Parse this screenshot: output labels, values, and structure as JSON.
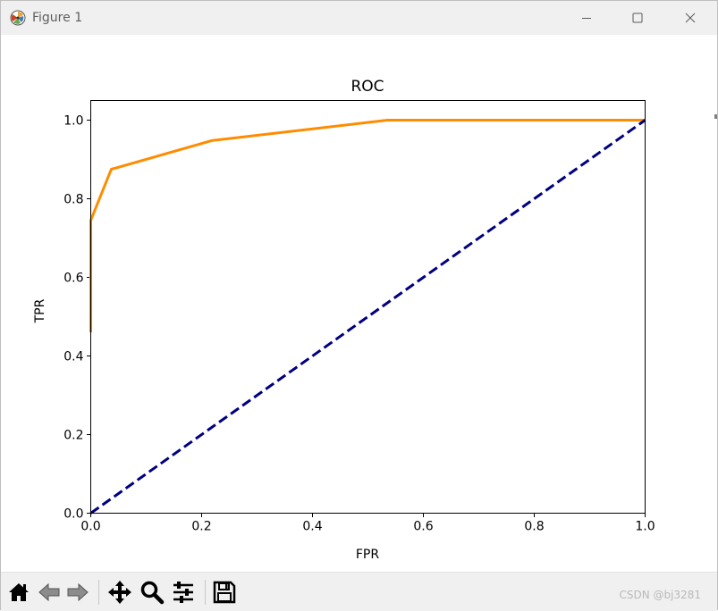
{
  "window": {
    "title": "Figure 1",
    "buttons": [
      "minimize-icon",
      "maximize-icon",
      "close-icon"
    ]
  },
  "toolbar": {
    "buttons": [
      {
        "name": "home-button",
        "icon": "home-icon"
      },
      {
        "name": "back-button",
        "icon": "back-arrow-icon"
      },
      {
        "name": "forward-button",
        "icon": "forward-arrow-icon"
      },
      {
        "name": "pan-button",
        "icon": "move-icon"
      },
      {
        "name": "zoom-button",
        "icon": "magnifier-icon"
      },
      {
        "name": "configure-subplots-button",
        "icon": "sliders-icon"
      },
      {
        "name": "save-button",
        "icon": "floppy-disk-icon"
      }
    ],
    "watermark": "CSDN @bj3281"
  },
  "chart_data": {
    "type": "line",
    "title": "ROC",
    "xlabel": "FPR",
    "ylabel": "TPR",
    "xlim": [
      0.0,
      1.0
    ],
    "ylim": [
      0.0,
      1.05
    ],
    "xticks": [
      "0.0",
      "0.2",
      "0.4",
      "0.6",
      "0.8",
      "1.0"
    ],
    "yticks": [
      "0.0",
      "0.2",
      "0.4",
      "0.6",
      "0.8",
      "1.0"
    ],
    "grid": false,
    "series": [
      {
        "color": "#ff8c00",
        "style": "solid",
        "x": [
          0.0,
          0.0,
          0.0,
          0.037,
          0.218,
          0.535,
          1.0
        ],
        "y": [
          0.46,
          0.745,
          0.745,
          0.875,
          0.948,
          1.0,
          1.0
        ]
      },
      {
        "color": "#000080",
        "style": "dashed",
        "x": [
          0.0,
          1.0
        ],
        "y": [
          0.0,
          1.0
        ]
      }
    ]
  }
}
